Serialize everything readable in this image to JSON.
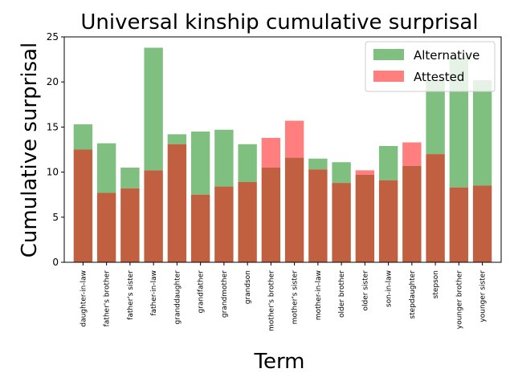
{
  "chart_data": {
    "type": "bar",
    "title": "Universal kinship cumulative surprisal",
    "xlabel": "Term",
    "ylabel": "Cumulative surprisal",
    "ylim": [
      0,
      25
    ],
    "yticks": [
      0,
      5,
      10,
      15,
      20,
      25
    ],
    "grid": false,
    "legend_position": "top-right",
    "categories": [
      "daughter-in-law",
      "father's brother",
      "father's sister",
      "father-in-law",
      "granddaughter",
      "grandfather",
      "grandmother",
      "grandson",
      "mother's brother",
      "mother's sister",
      "mother-in-law",
      "older brother",
      "older sister",
      "son-in-law",
      "stepdaughter",
      "stepson",
      "younger brother",
      "younger sister"
    ],
    "series": [
      {
        "name": "Alternative",
        "color": "#7fbf7f",
        "values": [
          15.3,
          13.2,
          10.5,
          23.8,
          14.2,
          14.5,
          14.7,
          13.1,
          10.5,
          11.6,
          11.5,
          11.1,
          9.7,
          12.9,
          10.7,
          20.2,
          22.8,
          20.2
        ]
      },
      {
        "name": "Attested",
        "color": "#ff7f7f",
        "values": [
          12.5,
          7.7,
          8.2,
          10.2,
          13.1,
          7.5,
          8.4,
          8.9,
          13.8,
          15.7,
          10.3,
          8.8,
          10.2,
          9.1,
          13.3,
          12.0,
          8.3,
          8.5
        ]
      }
    ],
    "overlap_color": "#c06040"
  }
}
